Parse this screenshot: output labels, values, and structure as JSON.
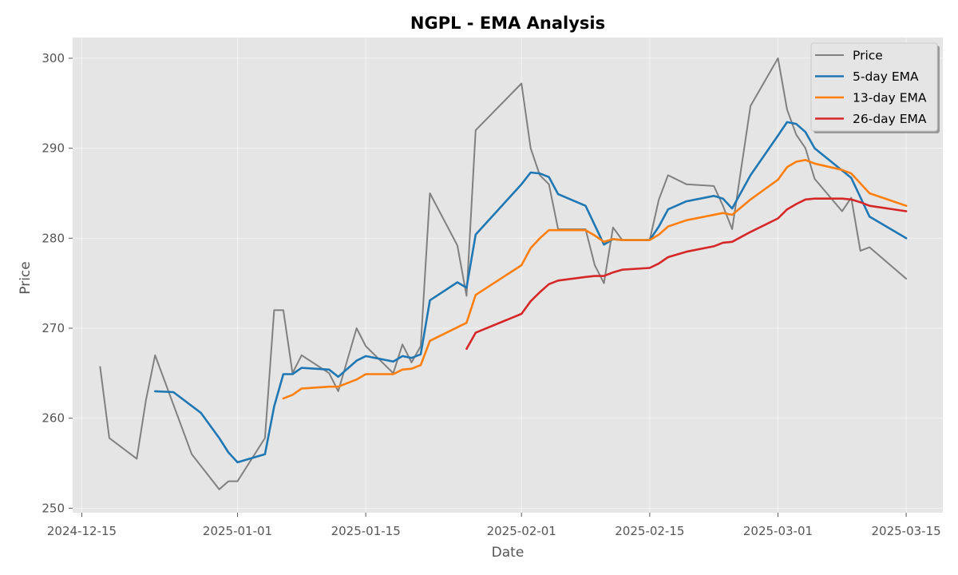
{
  "chart_data": {
    "type": "line",
    "title": "NGPL - EMA Analysis",
    "xlabel": "Date",
    "ylabel": "Price",
    "xlim": [
      "2024-12-14",
      "2025-03-19"
    ],
    "ylim": [
      249.5,
      302.3
    ],
    "x_ticks": [
      "2024-12-15",
      "2025-01-01",
      "2025-01-15",
      "2025-02-01",
      "2025-02-15",
      "2025-03-01",
      "2025-03-15"
    ],
    "y_ticks": [
      250,
      260,
      270,
      280,
      290,
      300
    ],
    "grid": true,
    "legend_position": "top-right",
    "series": [
      {
        "name": "Price",
        "color": "#808080",
        "points": [
          [
            "2024-12-17",
            265.7
          ],
          [
            "2024-12-18",
            257.8
          ],
          [
            "2024-12-21",
            255.5
          ],
          [
            "2024-12-22",
            262.0
          ],
          [
            "2024-12-23",
            267.0
          ],
          [
            "2024-12-27",
            256.0
          ],
          [
            "2024-12-30",
            252.1
          ],
          [
            "2024-12-31",
            253.0
          ],
          [
            "2025-01-01",
            253.0
          ],
          [
            "2025-01-04",
            257.8
          ],
          [
            "2025-01-05",
            272.0
          ],
          [
            "2025-01-06",
            272.0
          ],
          [
            "2025-01-07",
            265.0
          ],
          [
            "2025-01-08",
            267.0
          ],
          [
            "2025-01-11",
            265.0
          ],
          [
            "2025-01-12",
            263.0
          ],
          [
            "2025-01-14",
            270.0
          ],
          [
            "2025-01-15",
            268.0
          ],
          [
            "2025-01-18",
            265.0
          ],
          [
            "2025-01-19",
            268.2
          ],
          [
            "2025-01-20",
            266.2
          ],
          [
            "2025-01-21",
            268.0
          ],
          [
            "2025-01-22",
            285.0
          ],
          [
            "2025-01-25",
            279.2
          ],
          [
            "2025-01-26",
            273.6
          ],
          [
            "2025-01-27",
            292.0
          ],
          [
            "2025-02-01",
            297.2
          ],
          [
            "2025-02-02",
            290.0
          ],
          [
            "2025-02-03",
            287.0
          ],
          [
            "2025-02-04",
            286.0
          ],
          [
            "2025-02-05",
            281.0
          ],
          [
            "2025-02-08",
            281.0
          ],
          [
            "2025-02-09",
            277.0
          ],
          [
            "2025-02-10",
            275.0
          ],
          [
            "2025-02-11",
            281.2
          ],
          [
            "2025-02-12",
            279.8
          ],
          [
            "2025-02-15",
            279.8
          ],
          [
            "2025-02-16",
            284.3
          ],
          [
            "2025-02-17",
            287.0
          ],
          [
            "2025-02-19",
            286.0
          ],
          [
            "2025-02-22",
            285.8
          ],
          [
            "2025-02-23",
            283.6
          ],
          [
            "2025-02-24",
            281.0
          ],
          [
            "2025-02-26",
            294.7
          ],
          [
            "2025-03-01",
            300.0
          ],
          [
            "2025-03-02",
            294.3
          ],
          [
            "2025-03-03",
            291.5
          ],
          [
            "2025-03-04",
            290.0
          ],
          [
            "2025-03-05",
            286.6
          ],
          [
            "2025-03-08",
            283.0
          ],
          [
            "2025-03-09",
            284.5
          ],
          [
            "2025-03-10",
            278.6
          ],
          [
            "2025-03-11",
            279.0
          ],
          [
            "2025-03-15",
            275.5
          ]
        ]
      },
      {
        "name": "5-day EMA",
        "color": "#1f77b4",
        "points": [
          [
            "2024-12-23",
            263.0
          ],
          [
            "2024-12-25",
            262.9
          ],
          [
            "2024-12-28",
            260.6
          ],
          [
            "2024-12-30",
            257.8
          ],
          [
            "2024-12-31",
            256.2
          ],
          [
            "2025-01-01",
            255.1
          ],
          [
            "2025-01-04",
            256.0
          ],
          [
            "2025-01-05",
            261.3
          ],
          [
            "2025-01-06",
            264.9
          ],
          [
            "2025-01-07",
            264.9
          ],
          [
            "2025-01-08",
            265.6
          ],
          [
            "2025-01-11",
            265.4
          ],
          [
            "2025-01-12",
            264.6
          ],
          [
            "2025-01-14",
            266.4
          ],
          [
            "2025-01-15",
            266.9
          ],
          [
            "2025-01-18",
            266.3
          ],
          [
            "2025-01-19",
            266.9
          ],
          [
            "2025-01-20",
            266.7
          ],
          [
            "2025-01-21",
            267.1
          ],
          [
            "2025-01-22",
            273.1
          ],
          [
            "2025-01-25",
            275.1
          ],
          [
            "2025-01-26",
            274.5
          ],
          [
            "2025-01-27",
            280.4
          ],
          [
            "2025-02-01",
            286.0
          ],
          [
            "2025-02-02",
            287.3
          ],
          [
            "2025-02-03",
            287.2
          ],
          [
            "2025-02-04",
            286.8
          ],
          [
            "2025-02-05",
            284.9
          ],
          [
            "2025-02-08",
            283.6
          ],
          [
            "2025-02-10",
            279.3
          ],
          [
            "2025-02-11",
            279.9
          ],
          [
            "2025-02-12",
            279.8
          ],
          [
            "2025-02-15",
            279.8
          ],
          [
            "2025-02-16",
            281.3
          ],
          [
            "2025-02-17",
            283.2
          ],
          [
            "2025-02-19",
            284.1
          ],
          [
            "2025-02-22",
            284.7
          ],
          [
            "2025-02-23",
            284.4
          ],
          [
            "2025-02-24",
            283.3
          ],
          [
            "2025-02-26",
            287.0
          ],
          [
            "2025-03-01",
            291.4
          ],
          [
            "2025-03-02",
            292.9
          ],
          [
            "2025-03-03",
            292.7
          ],
          [
            "2025-03-04",
            291.8
          ],
          [
            "2025-03-05",
            290.0
          ],
          [
            "2025-03-09",
            286.7
          ],
          [
            "2025-03-11",
            282.4
          ],
          [
            "2025-03-15",
            280.0
          ]
        ]
      },
      {
        "name": "13-day EMA",
        "color": "#ff7f0e",
        "points": [
          [
            "2025-01-06",
            262.2
          ],
          [
            "2025-01-07",
            262.6
          ],
          [
            "2025-01-08",
            263.3
          ],
          [
            "2025-01-11",
            263.5
          ],
          [
            "2025-01-12",
            263.5
          ],
          [
            "2025-01-14",
            264.3
          ],
          [
            "2025-01-15",
            264.9
          ],
          [
            "2025-01-18",
            264.9
          ],
          [
            "2025-01-19",
            265.4
          ],
          [
            "2025-01-20",
            265.5
          ],
          [
            "2025-01-21",
            265.9
          ],
          [
            "2025-01-22",
            268.6
          ],
          [
            "2025-01-26",
            270.6
          ],
          [
            "2025-01-27",
            273.7
          ],
          [
            "2025-02-01",
            277.0
          ],
          [
            "2025-02-02",
            278.9
          ],
          [
            "2025-02-03",
            280.0
          ],
          [
            "2025-02-04",
            280.9
          ],
          [
            "2025-02-05",
            280.9
          ],
          [
            "2025-02-08",
            280.9
          ],
          [
            "2025-02-09",
            280.3
          ],
          [
            "2025-02-10",
            279.6
          ],
          [
            "2025-02-11",
            279.9
          ],
          [
            "2025-02-12",
            279.8
          ],
          [
            "2025-02-15",
            279.8
          ],
          [
            "2025-02-16",
            280.4
          ],
          [
            "2025-02-17",
            281.3
          ],
          [
            "2025-02-19",
            282.0
          ],
          [
            "2025-02-23",
            282.8
          ],
          [
            "2025-02-24",
            282.6
          ],
          [
            "2025-02-26",
            284.3
          ],
          [
            "2025-03-01",
            286.5
          ],
          [
            "2025-03-02",
            287.9
          ],
          [
            "2025-03-03",
            288.5
          ],
          [
            "2025-03-04",
            288.7
          ],
          [
            "2025-03-05",
            288.3
          ],
          [
            "2025-03-08",
            287.6
          ],
          [
            "2025-03-09",
            287.2
          ],
          [
            "2025-03-11",
            285.0
          ],
          [
            "2025-03-15",
            283.6
          ]
        ]
      },
      {
        "name": "26-day EMA",
        "color": "#d62728",
        "points": [
          [
            "2025-01-26",
            267.7
          ],
          [
            "2025-01-27",
            269.5
          ],
          [
            "2025-02-01",
            271.6
          ],
          [
            "2025-02-02",
            273.0
          ],
          [
            "2025-02-03",
            274.0
          ],
          [
            "2025-02-04",
            274.9
          ],
          [
            "2025-02-05",
            275.3
          ],
          [
            "2025-02-08",
            275.7
          ],
          [
            "2025-02-09",
            275.8
          ],
          [
            "2025-02-10",
            275.8
          ],
          [
            "2025-02-11",
            276.2
          ],
          [
            "2025-02-12",
            276.5
          ],
          [
            "2025-02-15",
            276.7
          ],
          [
            "2025-02-16",
            277.2
          ],
          [
            "2025-02-17",
            277.9
          ],
          [
            "2025-02-19",
            278.5
          ],
          [
            "2025-02-22",
            279.1
          ],
          [
            "2025-02-23",
            279.5
          ],
          [
            "2025-02-24",
            279.6
          ],
          [
            "2025-02-26",
            280.7
          ],
          [
            "2025-03-01",
            282.2
          ],
          [
            "2025-03-02",
            283.2
          ],
          [
            "2025-03-03",
            283.8
          ],
          [
            "2025-03-04",
            284.3
          ],
          [
            "2025-03-05",
            284.4
          ],
          [
            "2025-03-08",
            284.4
          ],
          [
            "2025-03-09",
            284.3
          ],
          [
            "2025-03-10",
            284.0
          ],
          [
            "2025-03-11",
            283.6
          ],
          [
            "2025-03-15",
            283.0
          ]
        ]
      }
    ]
  }
}
